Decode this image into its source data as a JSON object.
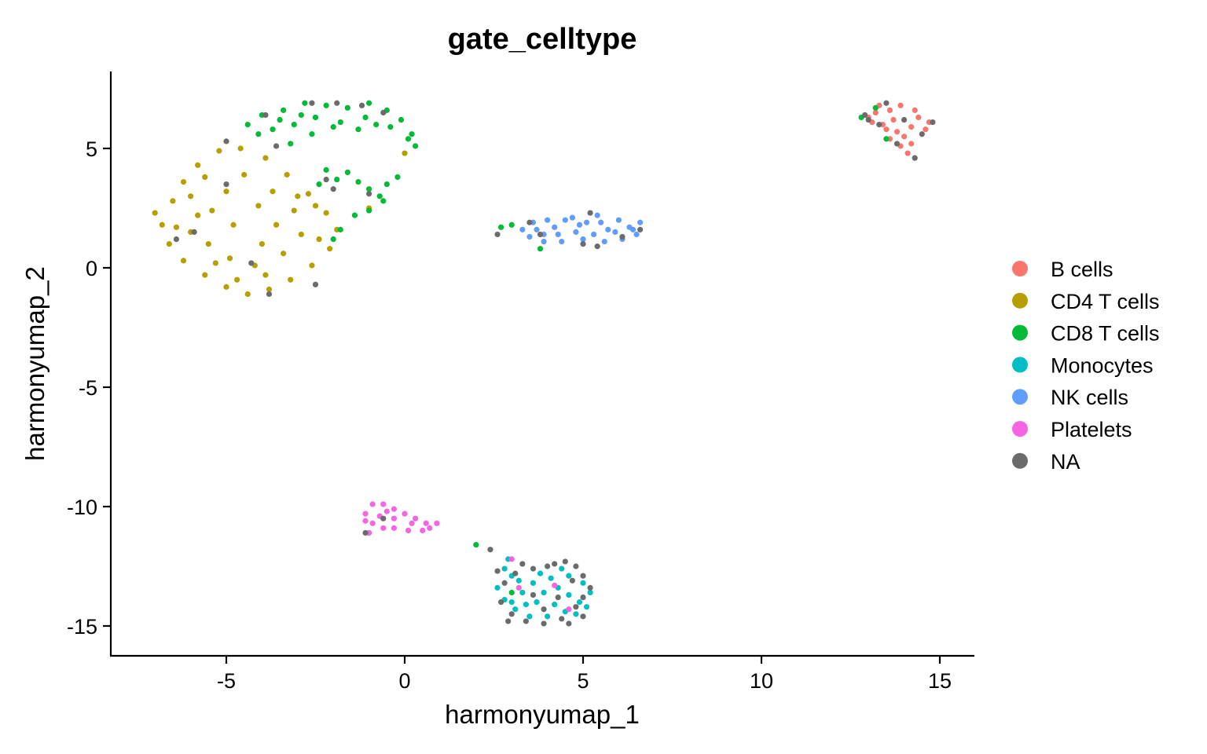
{
  "chart_data": {
    "type": "scatter",
    "title": "gate_celltype",
    "xlabel": "harmonyumap_1",
    "ylabel": "harmonyumap_2",
    "xlim": [
      -8.3,
      15.9
    ],
    "ylim": [
      -16.3,
      8.3
    ],
    "xticks": [
      -5,
      0,
      5,
      10,
      15
    ],
    "xtick_labels": [
      "-5",
      "0",
      "5",
      "10",
      "15"
    ],
    "yticks": [
      5,
      0,
      -5,
      -10,
      -15
    ],
    "ytick_labels": [
      "5",
      "0",
      "-5",
      "-10",
      "-15"
    ],
    "grid": false,
    "legend_position": "right",
    "series": [
      {
        "name": "B cells",
        "color": "#F8766D",
        "values": [
          [
            13.0,
            6.3
          ],
          [
            13.3,
            6.8
          ],
          [
            13.6,
            6.6
          ],
          [
            13.9,
            6.8
          ],
          [
            14.3,
            6.6
          ],
          [
            14.7,
            6.1
          ],
          [
            13.4,
            6.0
          ],
          [
            13.8,
            5.7
          ],
          [
            14.2,
            5.9
          ],
          [
            14.6,
            5.8
          ],
          [
            13.6,
            5.4
          ],
          [
            13.9,
            5.1
          ],
          [
            14.1,
            4.8
          ],
          [
            13.2,
            6.5
          ],
          [
            14.4,
            6.3
          ],
          [
            13.7,
            6.2
          ],
          [
            14.0,
            5.5
          ],
          [
            13.5,
            5.8
          ],
          [
            14.2,
            5.2
          ],
          [
            13.1,
            6.1
          ]
        ]
      },
      {
        "name": "CD4 T cells",
        "color": "#B79F00",
        "values": [
          [
            -7.0,
            2.3
          ],
          [
            -6.8,
            1.8
          ],
          [
            -6.5,
            2.8
          ],
          [
            -6.2,
            3.6
          ],
          [
            -5.8,
            4.3
          ],
          [
            -5.2,
            4.9
          ],
          [
            -4.6,
            5.0
          ],
          [
            -3.9,
            4.6
          ],
          [
            -3.3,
            3.9
          ],
          [
            -2.7,
            3.1
          ],
          [
            -2.2,
            2.3
          ],
          [
            -1.9,
            1.6
          ],
          [
            -2.1,
            0.8
          ],
          [
            -2.6,
            0.1
          ],
          [
            -3.2,
            -0.5
          ],
          [
            -3.8,
            -0.9
          ],
          [
            -4.4,
            -1.1
          ],
          [
            -5.0,
            -0.8
          ],
          [
            -5.6,
            -0.3
          ],
          [
            -6.2,
            0.3
          ],
          [
            -6.6,
            1.0
          ],
          [
            -6.0,
            1.5
          ],
          [
            -5.4,
            2.4
          ],
          [
            -5.0,
            3.2
          ],
          [
            -4.5,
            3.9
          ],
          [
            -3.7,
            3.2
          ],
          [
            -3.1,
            2.4
          ],
          [
            -2.9,
            1.4
          ],
          [
            -3.4,
            0.6
          ],
          [
            -4.2,
            0.1
          ],
          [
            -4.9,
            0.4
          ],
          [
            -5.5,
            1.0
          ],
          [
            -4.8,
            1.8
          ],
          [
            -4.1,
            2.6
          ],
          [
            -3.6,
            1.8
          ],
          [
            -4.0,
            1.0
          ],
          [
            -5.8,
            2.2
          ],
          [
            -6.4,
            1.7
          ],
          [
            -2.4,
            1.2
          ],
          [
            -3.9,
            -0.3
          ],
          [
            -4.7,
            -0.5
          ],
          [
            -5.3,
            0.2
          ],
          [
            -6.0,
            3.0
          ],
          [
            -5.6,
            3.8
          ],
          [
            -3.0,
            3.0
          ],
          [
            -2.5,
            2.6
          ],
          [
            -1.0,
            2.5
          ],
          [
            0.0,
            4.8
          ]
        ]
      },
      {
        "name": "CD8 T cells",
        "color": "#00BA38",
        "values": [
          [
            -4.4,
            6.0
          ],
          [
            -4.0,
            6.4
          ],
          [
            -3.4,
            6.6
          ],
          [
            -2.8,
            6.9
          ],
          [
            -2.2,
            6.8
          ],
          [
            -1.6,
            6.7
          ],
          [
            -1.0,
            6.9
          ],
          [
            -0.5,
            6.6
          ],
          [
            -0.1,
            6.2
          ],
          [
            0.2,
            5.6
          ],
          [
            0.3,
            5.1
          ],
          [
            -0.4,
            5.9
          ],
          [
            -1.1,
            6.3
          ],
          [
            -1.8,
            6.1
          ],
          [
            -2.5,
            6.3
          ],
          [
            -3.1,
            6.0
          ],
          [
            -3.7,
            5.8
          ],
          [
            -3.2,
            5.2
          ],
          [
            -2.6,
            5.6
          ],
          [
            -2.2,
            4.1
          ],
          [
            -2.4,
            3.5
          ],
          [
            -1.9,
            3.7
          ],
          [
            -1.6,
            4.0
          ],
          [
            -1.3,
            3.6
          ],
          [
            -1.0,
            3.3
          ],
          [
            -0.7,
            3.0
          ],
          [
            -0.5,
            3.5
          ],
          [
            -0.6,
            2.8
          ],
          [
            -1.0,
            2.4
          ],
          [
            -1.4,
            2.2
          ],
          [
            -1.8,
            1.6
          ],
          [
            -2.0,
            1.2
          ],
          [
            -0.2,
            3.8
          ],
          [
            -2.9,
            6.4
          ],
          [
            -3.5,
            6.2
          ],
          [
            -4.1,
            5.6
          ],
          [
            -1.3,
            5.8
          ],
          [
            0.1,
            5.4
          ],
          [
            -0.8,
            6.0
          ],
          [
            -2.0,
            5.9
          ],
          [
            2.7,
            1.7
          ],
          [
            3.0,
            1.8
          ],
          [
            3.8,
            0.8
          ],
          [
            12.8,
            6.3
          ],
          [
            13.2,
            6.7
          ],
          [
            13.5,
            5.4
          ],
          [
            2.0,
            -11.6
          ],
          [
            3.0,
            -13.6
          ]
        ]
      },
      {
        "name": "Monocytes",
        "color": "#00BFC4",
        "values": [
          [
            2.8,
            -12.6
          ],
          [
            3.0,
            -12.9
          ],
          [
            2.6,
            -13.4
          ],
          [
            2.8,
            -13.9
          ],
          [
            3.1,
            -14.3
          ],
          [
            3.5,
            -14.6
          ],
          [
            4.0,
            -14.6
          ],
          [
            4.5,
            -14.4
          ],
          [
            4.9,
            -14.0
          ],
          [
            5.2,
            -13.6
          ],
          [
            5.0,
            -13.2
          ],
          [
            4.6,
            -12.9
          ],
          [
            4.1,
            -13.0
          ],
          [
            3.6,
            -13.2
          ],
          [
            3.3,
            -13.6
          ],
          [
            3.7,
            -14.0
          ],
          [
            4.2,
            -14.1
          ],
          [
            4.6,
            -13.7
          ],
          [
            4.3,
            -13.4
          ],
          [
            3.9,
            -13.6
          ],
          [
            3.4,
            -14.1
          ],
          [
            3.0,
            -14.0
          ],
          [
            3.2,
            -13.1
          ],
          [
            4.8,
            -14.5
          ],
          [
            5.1,
            -14.2
          ],
          [
            3.8,
            -12.8
          ],
          [
            4.4,
            -12.6
          ],
          [
            2.9,
            -12.2
          ]
        ]
      },
      {
        "name": "NK cells",
        "color": "#619CFF",
        "values": [
          [
            3.3,
            1.6
          ],
          [
            3.6,
            1.9
          ],
          [
            3.9,
            1.4
          ],
          [
            4.2,
            1.7
          ],
          [
            4.5,
            2.0
          ],
          [
            4.8,
            1.5
          ],
          [
            5.1,
            1.9
          ],
          [
            5.4,
            2.2
          ],
          [
            5.7,
            1.6
          ],
          [
            6.0,
            2.0
          ],
          [
            6.3,
            1.7
          ],
          [
            6.6,
            1.9
          ],
          [
            6.5,
            1.4
          ],
          [
            6.1,
            1.2
          ],
          [
            5.6,
            1.1
          ],
          [
            5.0,
            1.2
          ],
          [
            4.4,
            1.1
          ],
          [
            3.9,
            1.1
          ],
          [
            3.5,
            1.3
          ],
          [
            4.0,
            2.0
          ],
          [
            4.7,
            2.1
          ],
          [
            5.3,
            1.4
          ],
          [
            5.9,
            1.5
          ],
          [
            6.4,
            1.6
          ],
          [
            3.7,
            1.6
          ],
          [
            4.9,
            1.8
          ],
          [
            5.5,
            1.9
          ],
          [
            4.3,
            1.4
          ]
        ]
      },
      {
        "name": "Platelets",
        "color": "#F564E3",
        "values": [
          [
            -1.1,
            -10.3
          ],
          [
            -0.9,
            -9.9
          ],
          [
            -0.6,
            -9.9
          ],
          [
            -0.3,
            -10.1
          ],
          [
            0.0,
            -10.3
          ],
          [
            0.3,
            -10.5
          ],
          [
            0.6,
            -10.7
          ],
          [
            0.9,
            -10.7
          ],
          [
            0.5,
            -11.0
          ],
          [
            0.1,
            -11.0
          ],
          [
            -0.3,
            -10.9
          ],
          [
            -0.6,
            -10.9
          ],
          [
            -0.9,
            -10.7
          ],
          [
            -1.1,
            -10.6
          ],
          [
            -0.7,
            -10.4
          ],
          [
            -0.3,
            -10.5
          ],
          [
            0.2,
            -10.7
          ],
          [
            -0.5,
            -10.2
          ],
          [
            -1.0,
            -11.1
          ],
          [
            0.7,
            -10.9
          ],
          [
            3.0,
            -12.2
          ],
          [
            3.2,
            -13.4
          ],
          [
            4.2,
            -13.3
          ],
          [
            4.6,
            -14.3
          ]
        ]
      },
      {
        "name": "NA",
        "color": "#6B6B6B",
        "values": [
          [
            -5.0,
            5.3
          ],
          [
            -3.6,
            5.1
          ],
          [
            -3.9,
            6.4
          ],
          [
            -2.6,
            6.9
          ],
          [
            -1.9,
            6.9
          ],
          [
            -1.2,
            6.8
          ],
          [
            -0.6,
            6.5
          ],
          [
            -5.9,
            1.5
          ],
          [
            -6.4,
            1.2
          ],
          [
            -4.3,
            0.2
          ],
          [
            -3.8,
            -1.1
          ],
          [
            -2.5,
            -0.7
          ],
          [
            -5.0,
            3.5
          ],
          [
            -2.2,
            3.7
          ],
          [
            -2.0,
            3.3
          ],
          [
            -1.0,
            3.1
          ],
          [
            2.6,
            1.4
          ],
          [
            3.5,
            1.9
          ],
          [
            3.8,
            1.4
          ],
          [
            5.0,
            1.0
          ],
          [
            5.4,
            0.9
          ],
          [
            5.2,
            2.3
          ],
          [
            6.1,
            1.3
          ],
          [
            6.6,
            1.6
          ],
          [
            12.9,
            6.4
          ],
          [
            13.3,
            6.0
          ],
          [
            13.5,
            6.9
          ],
          [
            13.8,
            5.2
          ],
          [
            14.3,
            4.6
          ],
          [
            14.5,
            5.6
          ],
          [
            14.8,
            6.1
          ],
          [
            13.0,
            6.2
          ],
          [
            14.0,
            6.2
          ],
          [
            -1.1,
            -11.1
          ],
          [
            -0.6,
            -10.5
          ],
          [
            2.6,
            -12.7
          ],
          [
            3.1,
            -12.8
          ],
          [
            3.6,
            -12.6
          ],
          [
            4.0,
            -12.5
          ],
          [
            4.5,
            -12.3
          ],
          [
            4.8,
            -12.5
          ],
          [
            5.0,
            -12.9
          ],
          [
            5.2,
            -13.4
          ],
          [
            5.0,
            -13.8
          ],
          [
            4.8,
            -14.2
          ],
          [
            4.4,
            -14.7
          ],
          [
            3.9,
            -14.9
          ],
          [
            3.4,
            -14.8
          ],
          [
            3.0,
            -14.5
          ],
          [
            2.7,
            -14.0
          ],
          [
            3.6,
            -13.7
          ],
          [
            4.3,
            -13.8
          ],
          [
            3.3,
            -12.4
          ],
          [
            4.2,
            -12.4
          ],
          [
            4.7,
            -13.1
          ],
          [
            2.8,
            -13.2
          ],
          [
            3.9,
            -14.3
          ],
          [
            4.6,
            -14.9
          ],
          [
            5.0,
            -14.6
          ],
          [
            2.9,
            -14.8
          ],
          [
            2.4,
            -11.8
          ]
        ]
      }
    ]
  }
}
